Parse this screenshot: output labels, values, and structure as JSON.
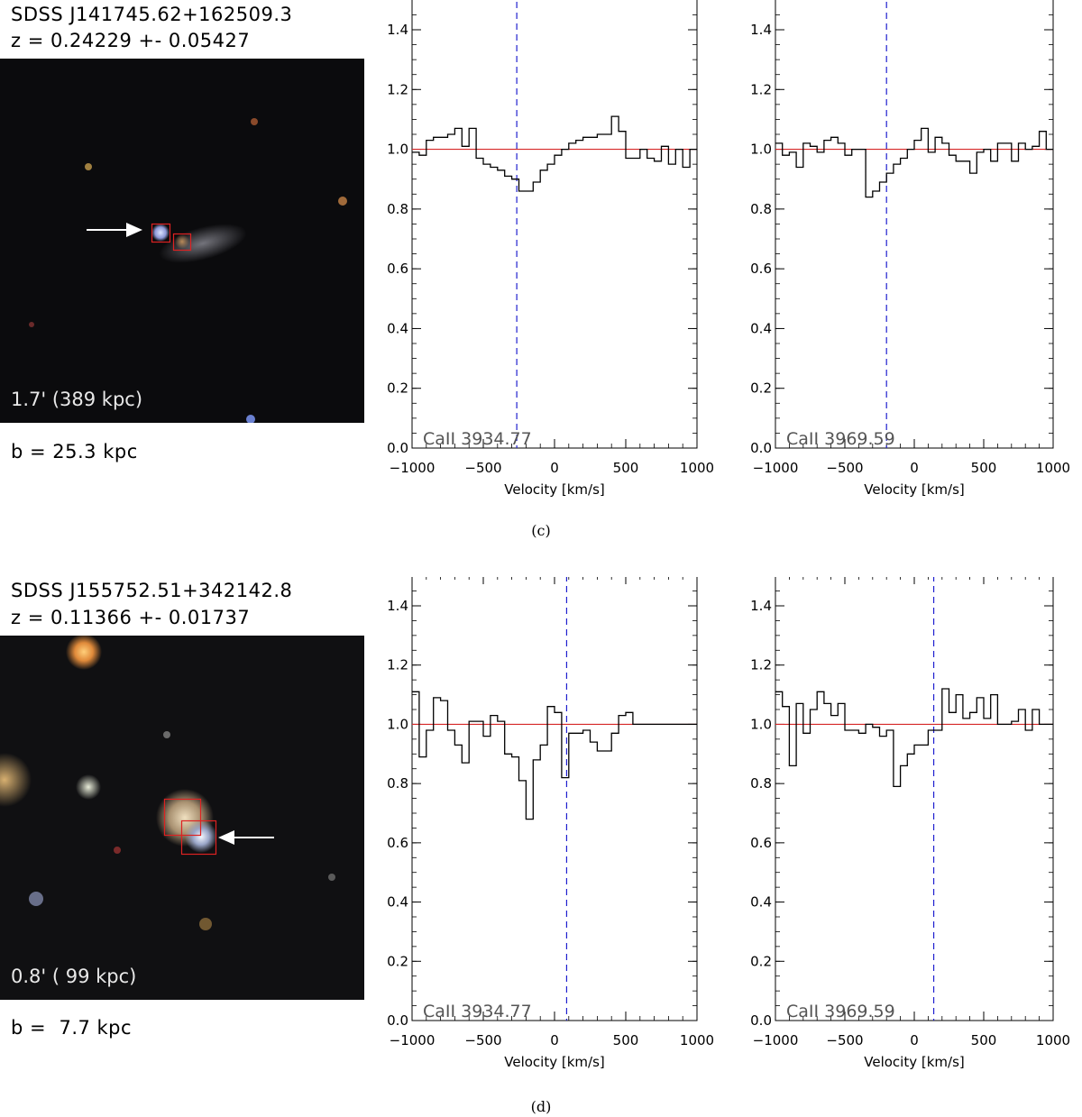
{
  "panels": [
    {
      "id": "c",
      "object_name": "SDSS J141745.62+162509.3",
      "redshift": "z = 0.24229 +- 0.05427",
      "scale_label": "1.7' (389 kpc)",
      "impact": "b = 25.3 kpc",
      "caption": "(c)"
    },
    {
      "id": "d",
      "object_name": "SDSS J155752.51+342142.8",
      "redshift": "z = 0.11366 +- 0.01737",
      "scale_label": "0.8' ( 99 kpc)",
      "impact": "b =  7.7 kpc",
      "caption": "(d)"
    }
  ],
  "chart_data": [
    {
      "type": "line",
      "panel": "c",
      "line_label": "CaII 3934.77",
      "xlabel": "Velocity [km/s]",
      "xlim": [
        -1000,
        1000
      ],
      "ylim": [
        0,
        1.5
      ],
      "xticks": [
        -1000,
        -500,
        0,
        500,
        1000
      ],
      "yticks": [
        0.0,
        0.2,
        0.4,
        0.6,
        0.8,
        1.0,
        1.2,
        1.4
      ],
      "continuum": 1.0,
      "marker_velocity": -265,
      "colors": {
        "spectrum": "#000000",
        "continuum": "#d62728",
        "marker": "#1f1fcf"
      },
      "step_x": [
        -1000,
        -950,
        -900,
        -850,
        -800,
        -750,
        -700,
        -650,
        -600,
        -550,
        -500,
        -450,
        -400,
        -350,
        -300,
        -250,
        -200,
        -150,
        -100,
        -50,
        0,
        50,
        100,
        150,
        200,
        250,
        300,
        350,
        400,
        450,
        500,
        550,
        600,
        650,
        700,
        750,
        800,
        850,
        900,
        950,
        1000
      ],
      "step_y": [
        0.99,
        0.98,
        1.03,
        1.04,
        1.04,
        1.05,
        1.07,
        1.01,
        1.07,
        0.97,
        0.95,
        0.94,
        0.93,
        0.91,
        0.9,
        0.86,
        0.86,
        0.89,
        0.93,
        0.95,
        0.98,
        1.0,
        1.02,
        1.03,
        1.04,
        1.04,
        1.05,
        1.05,
        1.11,
        1.06,
        0.97,
        0.97,
        1.0,
        0.97,
        0.96,
        1.01,
        0.95,
        1.0,
        0.94,
        1.0
      ]
    },
    {
      "type": "line",
      "panel": "c",
      "line_label": "CaII 3969.59",
      "xlabel": "Velocity [km/s]",
      "xlim": [
        -1000,
        1000
      ],
      "ylim": [
        0,
        1.5
      ],
      "xticks": [
        -1000,
        -500,
        0,
        500,
        1000
      ],
      "yticks": [
        0.0,
        0.2,
        0.4,
        0.6,
        0.8,
        1.0,
        1.2,
        1.4
      ],
      "continuum": 1.0,
      "marker_velocity": -200,
      "colors": {
        "spectrum": "#000000",
        "continuum": "#d62728",
        "marker": "#1f1fcf"
      },
      "step_x": [
        -1000,
        -950,
        -900,
        -850,
        -800,
        -750,
        -700,
        -650,
        -600,
        -550,
        -500,
        -450,
        -400,
        -350,
        -300,
        -250,
        -200,
        -150,
        -100,
        -50,
        0,
        50,
        100,
        150,
        200,
        250,
        300,
        350,
        400,
        450,
        500,
        550,
        600,
        650,
        700,
        750,
        800,
        850,
        900,
        950,
        1000
      ],
      "step_y": [
        1.02,
        0.98,
        0.99,
        0.94,
        1.02,
        1.01,
        0.99,
        1.03,
        1.04,
        1.02,
        0.98,
        1.0,
        1.0,
        0.84,
        0.86,
        0.89,
        0.92,
        0.95,
        0.97,
        1.0,
        1.03,
        1.07,
        0.99,
        1.04,
        1.02,
        0.98,
        0.96,
        0.96,
        0.92,
        0.99,
        1.0,
        0.96,
        1.02,
        1.02,
        0.96,
        1.02,
        1.0,
        1.01,
        1.06,
        1.0
      ]
    },
    {
      "type": "line",
      "panel": "d",
      "line_label": "CaII 3934.77",
      "xlabel": "Velocity [km/s]",
      "xlim": [
        -1000,
        1000
      ],
      "ylim": [
        0,
        1.5
      ],
      "xticks": [
        -1000,
        -500,
        0,
        500,
        1000
      ],
      "yticks": [
        0.0,
        0.2,
        0.4,
        0.6,
        0.8,
        1.0,
        1.2,
        1.4
      ],
      "continuum": 1.0,
      "marker_velocity": 85,
      "colors": {
        "spectrum": "#000000",
        "continuum": "#d62728",
        "marker": "#1f1fcf"
      },
      "step_x": [
        -1000,
        -950,
        -900,
        -850,
        -800,
        -750,
        -700,
        -650,
        -600,
        -550,
        -500,
        -450,
        -400,
        -350,
        -300,
        -250,
        -200,
        -150,
        -100,
        -50,
        0,
        50,
        100,
        150,
        200,
        250,
        300,
        350,
        400,
        450,
        500,
        550,
        600,
        650,
        700,
        750,
        800,
        850,
        900,
        950,
        1000
      ],
      "step_y": [
        1.11,
        0.89,
        0.98,
        1.09,
        1.08,
        0.98,
        0.93,
        0.87,
        1.01,
        1.01,
        0.96,
        1.03,
        1.01,
        0.9,
        0.89,
        0.81,
        0.68,
        0.88,
        0.93,
        1.06,
        1.04,
        0.82,
        0.97,
        0.97,
        0.98,
        0.94,
        0.91,
        0.91,
        0.97,
        1.03,
        1.04,
        1.0,
        1.0,
        1.0,
        1.0,
        1.0,
        1.0,
        1.0,
        1.0,
        1.0
      ]
    },
    {
      "type": "line",
      "panel": "d",
      "line_label": "CaII 3969.59",
      "xlabel": "Velocity [km/s]",
      "xlim": [
        -1000,
        1000
      ],
      "ylim": [
        0,
        1.5
      ],
      "xticks": [
        -1000,
        -500,
        0,
        500,
        1000
      ],
      "yticks": [
        0.0,
        0.2,
        0.4,
        0.6,
        0.8,
        1.0,
        1.2,
        1.4
      ],
      "continuum": 1.0,
      "marker_velocity": 140,
      "colors": {
        "spectrum": "#000000",
        "continuum": "#d62728",
        "marker": "#1f1fcf"
      },
      "step_x": [
        -1000,
        -950,
        -900,
        -850,
        -800,
        -750,
        -700,
        -650,
        -600,
        -550,
        -500,
        -450,
        -400,
        -350,
        -300,
        -250,
        -200,
        -150,
        -100,
        -50,
        0,
        50,
        100,
        150,
        200,
        250,
        300,
        350,
        400,
        450,
        500,
        550,
        600,
        650,
        700,
        750,
        800,
        850,
        900,
        950,
        1000
      ],
      "step_y": [
        1.11,
        1.06,
        0.86,
        1.07,
        0.97,
        1.05,
        1.11,
        1.07,
        1.03,
        1.07,
        0.98,
        0.98,
        0.97,
        1.0,
        0.99,
        0.96,
        0.98,
        0.79,
        0.86,
        0.9,
        0.93,
        0.93,
        0.98,
        0.98,
        1.12,
        1.04,
        1.1,
        1.02,
        1.04,
        1.09,
        1.02,
        1.1,
        1.0,
        1.0,
        1.01,
        1.05,
        0.98,
        1.05,
        1.0,
        1.0
      ]
    }
  ]
}
